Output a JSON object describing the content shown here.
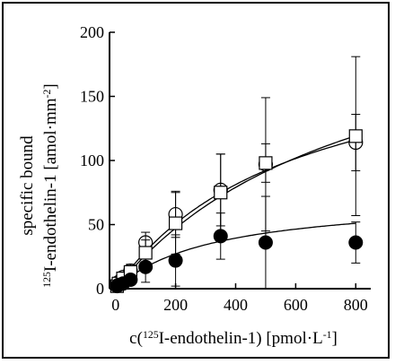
{
  "chart_data": {
    "type": "scatter",
    "xlabel": "c(125I-endothelin-1) [pmol·L-1]",
    "ylabel_line1": "specific bound",
    "ylabel_line2": "125I-endothelin-1 [amol·mm-2]",
    "xlim": [
      -20,
      850
    ],
    "ylim": [
      0,
      200
    ],
    "x_ticks": [
      0,
      200,
      400,
      600,
      800
    ],
    "y_ticks": [
      0,
      50,
      100,
      150,
      200
    ],
    "grid": false,
    "series": [
      {
        "marker": "open-circle",
        "points": [
          {
            "x": 5,
            "y": 3,
            "err": 0
          },
          {
            "x": 10,
            "y": 5,
            "err": 0
          },
          {
            "x": 25,
            "y": 9,
            "err": 3
          },
          {
            "x": 50,
            "y": 14,
            "err": 5
          },
          {
            "x": 100,
            "y": 36,
            "err": 8
          },
          {
            "x": 200,
            "y": 58,
            "err": 18
          },
          {
            "x": 350,
            "y": 77,
            "err": 28
          },
          {
            "x": 500,
            "y": 97,
            "err": 52
          },
          {
            "x": 800,
            "y": 114,
            "err": 22
          }
        ],
        "fit": {
          "bmax": 203,
          "kd": 600
        }
      },
      {
        "marker": "open-square",
        "points": [
          {
            "x": 5,
            "y": 2,
            "err": 0
          },
          {
            "x": 10,
            "y": 4,
            "err": 0
          },
          {
            "x": 25,
            "y": 8,
            "err": 3
          },
          {
            "x": 50,
            "y": 13,
            "err": 6
          },
          {
            "x": 100,
            "y": 28,
            "err": 10
          },
          {
            "x": 200,
            "y": 51,
            "err": 24
          },
          {
            "x": 350,
            "y": 75,
            "err": 30
          },
          {
            "x": 500,
            "y": 98,
            "err": 15
          },
          {
            "x": 800,
            "y": 119,
            "err": 62
          }
        ],
        "fit": {
          "bmax": 243,
          "kd": 830
        }
      },
      {
        "marker": "filled-circle",
        "points": [
          {
            "x": 5,
            "y": 2,
            "err": 0
          },
          {
            "x": 10,
            "y": 3,
            "err": 0
          },
          {
            "x": 25,
            "y": 4,
            "err": 2
          },
          {
            "x": 50,
            "y": 7,
            "err": 4
          },
          {
            "x": 100,
            "y": 17,
            "err": 12
          },
          {
            "x": 200,
            "y": 22,
            "err": 20
          },
          {
            "x": 350,
            "y": 41,
            "err": 18
          },
          {
            "x": 500,
            "y": 36,
            "err": 36
          },
          {
            "x": 800,
            "y": 36,
            "err": 16
          }
        ],
        "fit": {
          "bmax": 72,
          "kd": 330
        }
      }
    ]
  }
}
